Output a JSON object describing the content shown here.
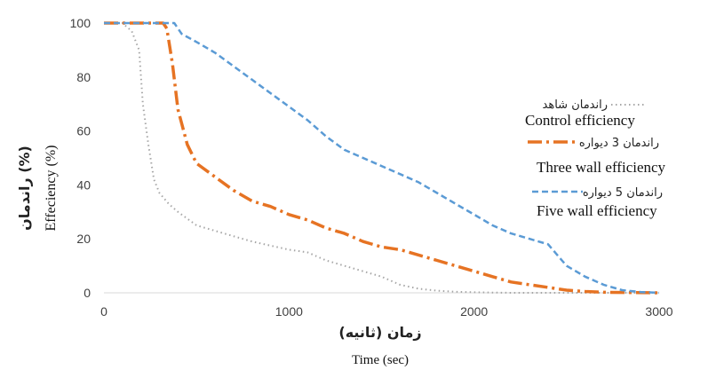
{
  "chart_data": {
    "type": "line",
    "xlabel_fa": "زمان (ثانیه)",
    "xlabel_en": "Time (sec)",
    "ylabel_fa": "راندمان (%)",
    "ylabel_en": "Effeciency (%)",
    "xlim": [
      0,
      3000
    ],
    "ylim": [
      0,
      100
    ],
    "x_ticks": [
      0,
      1000,
      2000,
      3000
    ],
    "y_ticks": [
      0,
      20,
      40,
      60,
      80,
      100
    ],
    "grid": false,
    "legend_position": "right",
    "series": [
      {
        "name_fa": "راندمان شاهد",
        "name_en": "Control efficiency",
        "color": "#a6a6a6",
        "style": "dotted",
        "points": [
          [
            0,
            100
          ],
          [
            100,
            100
          ],
          [
            150,
            97
          ],
          [
            190,
            90
          ],
          [
            210,
            70
          ],
          [
            240,
            55
          ],
          [
            270,
            42
          ],
          [
            300,
            37
          ],
          [
            350,
            33
          ],
          [
            400,
            30
          ],
          [
            500,
            25
          ],
          [
            600,
            23
          ],
          [
            700,
            21
          ],
          [
            800,
            19
          ],
          [
            900,
            17.5
          ],
          [
            1000,
            16
          ],
          [
            1100,
            15
          ],
          [
            1200,
            12
          ],
          [
            1300,
            10
          ],
          [
            1400,
            8
          ],
          [
            1500,
            6
          ],
          [
            1600,
            3
          ],
          [
            1700,
            1.5
          ],
          [
            1800,
            0.8
          ],
          [
            1900,
            0.4
          ],
          [
            2000,
            0.2
          ],
          [
            2200,
            0
          ],
          [
            3000,
            0
          ]
        ]
      },
      {
        "name_fa": "راندمان 3 دیواره",
        "name_en": "Three wall efficiency",
        "color": "#e67323",
        "style": "dash-dot",
        "points": [
          [
            0,
            100
          ],
          [
            320,
            100
          ],
          [
            340,
            98
          ],
          [
            370,
            85
          ],
          [
            400,
            68
          ],
          [
            450,
            55
          ],
          [
            500,
            48
          ],
          [
            600,
            43
          ],
          [
            700,
            38
          ],
          [
            800,
            34
          ],
          [
            900,
            32
          ],
          [
            1000,
            29
          ],
          [
            1100,
            27
          ],
          [
            1200,
            24
          ],
          [
            1300,
            22
          ],
          [
            1400,
            19
          ],
          [
            1500,
            17
          ],
          [
            1600,
            16
          ],
          [
            1700,
            14
          ],
          [
            1800,
            12
          ],
          [
            1900,
            10
          ],
          [
            2000,
            8
          ],
          [
            2100,
            6
          ],
          [
            2200,
            4
          ],
          [
            2300,
            3
          ],
          [
            2400,
            2
          ],
          [
            2500,
            1
          ],
          [
            2600,
            0.5
          ],
          [
            2700,
            0.2
          ],
          [
            3000,
            0
          ]
        ]
      },
      {
        "name_fa": "راندمان 5 دیواره",
        "name_en": "Five wall efficiency",
        "color": "#5b9bd5",
        "style": "dashed",
        "points": [
          [
            0,
            100
          ],
          [
            380,
            100
          ],
          [
            420,
            96
          ],
          [
            500,
            93
          ],
          [
            600,
            89
          ],
          [
            700,
            84
          ],
          [
            800,
            79
          ],
          [
            900,
            74
          ],
          [
            1000,
            69
          ],
          [
            1100,
            64
          ],
          [
            1200,
            58
          ],
          [
            1300,
            53
          ],
          [
            1400,
            50
          ],
          [
            1500,
            47
          ],
          [
            1600,
            44
          ],
          [
            1700,
            41
          ],
          [
            1800,
            37
          ],
          [
            1900,
            33
          ],
          [
            2000,
            29
          ],
          [
            2100,
            25
          ],
          [
            2200,
            22
          ],
          [
            2300,
            20
          ],
          [
            2400,
            18
          ],
          [
            2500,
            10
          ],
          [
            2600,
            6
          ],
          [
            2700,
            3
          ],
          [
            2800,
            1
          ],
          [
            2900,
            0.3
          ],
          [
            3000,
            0
          ]
        ]
      }
    ]
  }
}
